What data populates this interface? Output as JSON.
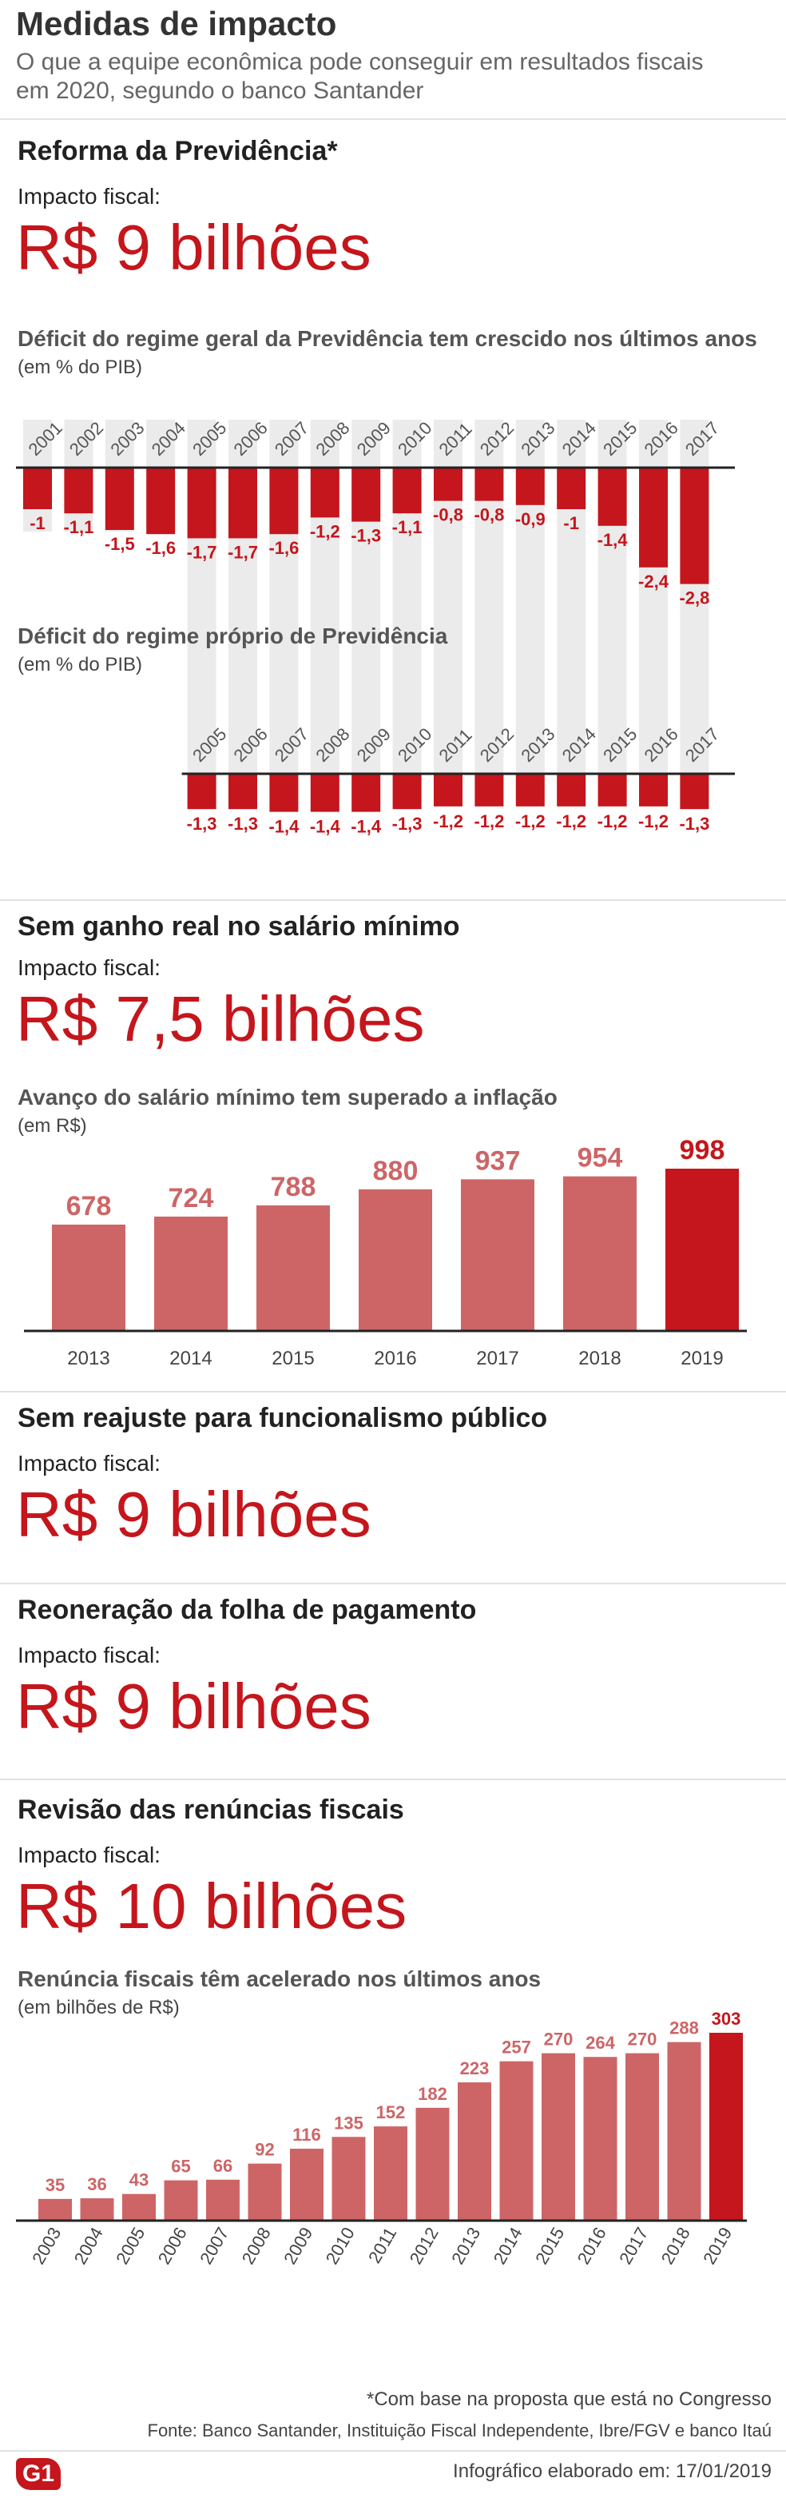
{
  "header": {
    "title": "Medidas de impacto",
    "subtitle": "O que a equipe econômica pode conseguir em resultados fiscais em 2020, segundo o banco Santander"
  },
  "sections": [
    {
      "title": "Reforma da Previdência*",
      "impact_label": "Impacto fiscal:",
      "impact_value": "R$ 9 bilhões"
    },
    {
      "title": "Sem ganho real no salário mínimo",
      "impact_label": "Impacto fiscal:",
      "impact_value": "R$ 7,5 bilhões"
    },
    {
      "title": "Sem reajuste para funcionalismo público",
      "impact_label": "Impacto fiscal:",
      "impact_value": "R$ 9 bilhões"
    },
    {
      "title": "Reoneração da folha de pagamento",
      "impact_label": "Impacto fiscal:",
      "impact_value": "R$ 9 bilhões"
    },
    {
      "title": "Revisão das renúncias fiscais",
      "impact_label": "Impacto fiscal:",
      "impact_value": "R$ 10 bilhões"
    }
  ],
  "colors": {
    "accent": "#c4161c",
    "bar": "#cd6567",
    "background_band": "#ebebeb",
    "text": "#222222"
  },
  "chart_data": [
    {
      "type": "bar",
      "title": "Déficit do regime geral da Previdência tem crescido nos últimos anos",
      "unit": "(em % do PIB)",
      "categories": [
        "2001",
        "2002",
        "2003",
        "2004",
        "2005",
        "2006",
        "2007",
        "2008",
        "2009",
        "2010",
        "2011",
        "2012",
        "2013",
        "2014",
        "2015",
        "2016",
        "2017"
      ],
      "values": [
        -1,
        -1.1,
        -1.5,
        -1.6,
        -1.7,
        -1.7,
        -1.6,
        -1.2,
        -1.3,
        -1.1,
        -0.8,
        -0.8,
        -0.9,
        -1,
        -1.4,
        -2.4,
        -2.8
      ],
      "labels": [
        "-1",
        "-1,1",
        "-1,5",
        "-1,6",
        "-1,7",
        "-1,7",
        "-1,6",
        "-1,2",
        "-1,3",
        "-1,1",
        "-0,8",
        "-0,8",
        "-0,9",
        "-1",
        "-1,4",
        "-2,4",
        "-2,8"
      ],
      "ylim": [
        -3,
        0
      ]
    },
    {
      "type": "bar",
      "title": "Déficit do regime próprio de Previdência",
      "unit": "(em % do PIB)",
      "categories": [
        "2005",
        "2006",
        "2007",
        "2008",
        "2009",
        "2010",
        "2011",
        "2012",
        "2013",
        "2014",
        "2015",
        "2016",
        "2017"
      ],
      "values": [
        -1.3,
        -1.3,
        -1.4,
        -1.4,
        -1.4,
        -1.3,
        -1.2,
        -1.2,
        -1.2,
        -1.2,
        -1.2,
        -1.2,
        -1.3
      ],
      "labels": [
        "-1,3",
        "-1,3",
        "-1,4",
        "-1,4",
        "-1,4",
        "-1,3",
        "-1,2",
        "-1,2",
        "-1,2",
        "-1,2",
        "-1,2",
        "-1,2",
        "-1,3"
      ],
      "ylim": [
        -1.5,
        0
      ]
    },
    {
      "type": "bar",
      "title": "Avanço do salário mínimo tem superado a inflação",
      "unit": "(em R$)",
      "categories": [
        "2013",
        "2014",
        "2015",
        "2016",
        "2017",
        "2018",
        "2019"
      ],
      "values": [
        678,
        724,
        788,
        880,
        937,
        954,
        998
      ],
      "labels": [
        "678",
        "724",
        "788",
        "880",
        "937",
        "954",
        "998"
      ],
      "highlight_last": true
    },
    {
      "type": "bar",
      "title": "Renúncia fiscais têm acelerado nos últimos anos",
      "unit": "(em bilhões de R$)",
      "categories": [
        "2003",
        "2004",
        "2005",
        "2006",
        "2007",
        "2008",
        "2009",
        "2010",
        "2011",
        "2012",
        "2013",
        "2014",
        "2015",
        "2016",
        "2017",
        "2018",
        "2019"
      ],
      "values": [
        35,
        36,
        43,
        65,
        66,
        92,
        116,
        135,
        152,
        182,
        223,
        257,
        270,
        264,
        270,
        288,
        303
      ],
      "labels": [
        "35",
        "36",
        "43",
        "65",
        "66",
        "92",
        "116",
        "135",
        "152",
        "182",
        "223",
        "257",
        "270",
        "264",
        "270",
        "288",
        "303"
      ],
      "highlight_last": true
    }
  ],
  "footer": {
    "footnote": "*Com base na proposta que está no Congresso",
    "source": "Fonte: Banco Santander, Instituição Fiscal Independente, Ibre/FGV e banco Itaú",
    "logo_text": "G1",
    "credit": "Infográfico elaborado em: 17/01/2019"
  }
}
